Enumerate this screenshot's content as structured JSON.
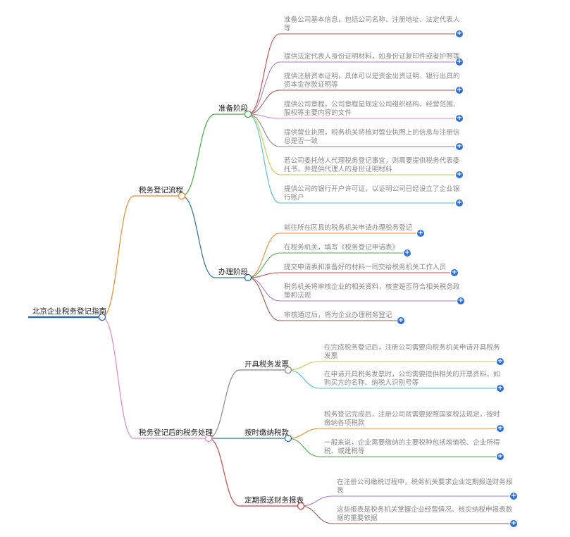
{
  "root": {
    "label": "北京企业税务登记指南",
    "color": "#2f6fa8"
  },
  "branches": [
    {
      "label": "税务登记流程",
      "color": "#f08a2a",
      "children": [
        {
          "label": "准备阶段",
          "color": "#4caa4c",
          "leaves": [
            {
              "text": "准备公司基本信息，包括公司名称、注册地址、法定代表人等",
              "color": "#c8484a"
            },
            {
              "text": "提供法定代表人身份证明材料，如身份证复印件或者护照等",
              "color": "#a57ec8"
            },
            {
              "text": "提供注册资本证明，具体可以是资金出资证明、银行出具的资本金存款证明等",
              "color": "#9a5a52"
            },
            {
              "text": "提供公司章程，公司章程是规定公司组织结构、经营范围、股权等主要内容的文件",
              "color": "#e088c8"
            },
            {
              "text": "提供营业执照，税务机关将核对营业执照上的信息与注册信息是否一致",
              "color": "#888888"
            },
            {
              "text": "若公司委托他人代理税务登记事宜，则需要提供税务代表委托书，并提供代理人的身份证明材料",
              "color": "#c8c84a"
            },
            {
              "text": "提供公司的银行开户许可证，以证明公司已经设立了企业银行账户",
              "color": "#4ac0d0"
            }
          ]
        },
        {
          "label": "办理阶段",
          "color": "#2f6fa8",
          "leaves": [
            {
              "text": "前往所在区县的税务机关申请办理税务登记",
              "color": "#f08a2a"
            },
            {
              "text": "在税务机关，填写《税务登记申请表》",
              "color": "#4caa4c"
            },
            {
              "text": "提交申请表和准备好的材料一同交给税务机关工作人员",
              "color": "#c8484a"
            },
            {
              "text": "税务机关将审核企业的相关资料，核查是否符合相关税务政策和法规",
              "color": "#a57ec8"
            },
            {
              "text": "审核通过后，将为企业办理税务登记",
              "color": "#9a5a52"
            }
          ]
        }
      ]
    },
    {
      "label": "税务登记后的税务处理",
      "color": "#e088c8",
      "children": [
        {
          "label": "开具税务发票",
          "color": "#888888",
          "leaves": [
            {
              "text": "在完成税务登记后，注册公司需要向税务机关申请开具税务发票",
              "color": "#c8c84a"
            },
            {
              "text": "在申请开具税务发票时，公司需要提供相关的开票资料，如购买方的名称、纳税人识别号等",
              "color": "#4ac0d0"
            }
          ]
        },
        {
          "label": "按时缴纳税款",
          "color": "#2f6fa8",
          "leaves": [
            {
              "text": "税务登记完成后，注册公司就需要按照国家税法规定，按时缴纳各项税款",
              "color": "#f08a2a"
            },
            {
              "text": "一般来说，企业需要缴纳的主要税种包括增值税、企业所得税、城建税等",
              "color": "#4caa4c"
            }
          ]
        },
        {
          "label": "定期报送财务报表",
          "color": "#c8484a",
          "leaves": [
            {
              "text": "在注册公司缴税过程中，税务机关要求企业定期报送财务报表",
              "color": "#a57ec8"
            },
            {
              "text": "这些报表是税务机关掌握企业经营情况、核实纳税申报表数据的重要依据",
              "color": "#9a5a52"
            }
          ]
        }
      ]
    }
  ],
  "icons": {
    "expand": "plus-circle-icon",
    "node": "collapse-circle-icon"
  },
  "expand_glyph": "+"
}
